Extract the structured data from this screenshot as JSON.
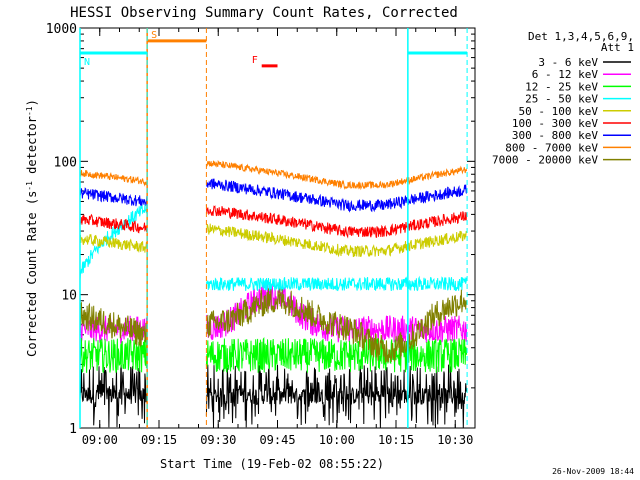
{
  "chart_data": {
    "type": "line",
    "title": "HESSI Observing Summary Count Rates, Corrected",
    "xlabel": "Start Time (19-Feb-02 08:55:22)",
    "ylabel_main": "Corrected Count Rate (s",
    "ylabel_sup1": "-1",
    "ylabel_mid": " detector",
    "ylabel_sup2": "-1",
    "ylabel_end": ")",
    "xlim_minutes_after_0855": [
      0,
      100
    ],
    "ylog": true,
    "ylim": [
      1,
      1000
    ],
    "y_ticks": [
      "1",
      "10",
      "100",
      "1000"
    ],
    "x_ticks": [
      {
        "label": "09:00",
        "min": 5
      },
      {
        "label": "09:15",
        "min": 20
      },
      {
        "label": "09:30",
        "min": 35
      },
      {
        "label": "09:45",
        "min": 50
      },
      {
        "label": "10:00",
        "min": 65
      },
      {
        "label": "10:15",
        "min": 80
      },
      {
        "label": "10:30",
        "min": 95
      }
    ],
    "legend_header": [
      "Det 1,3,4,5,6,9,",
      "Att 1"
    ],
    "legend_placement": "right",
    "timestamp": "26-Nov-2009 18:44",
    "data_gap_minutes": [
      17,
      32
    ],
    "series": [
      {
        "name": "3 - 6 keV",
        "color": "#000000",
        "base": 1.7,
        "noise": 0.9,
        "shape": "flat"
      },
      {
        "name": "6 - 12 keV",
        "color": "#ff00ff",
        "base": 5.5,
        "noise": 0.12,
        "shape": "bump"
      },
      {
        "name": "12 - 25 keV",
        "color": "#00ff00",
        "base": 3.5,
        "noise": 0.15,
        "shape": "flat"
      },
      {
        "name": "25 - 50 keV",
        "color": "#00ffff",
        "base": 12,
        "noise": 0.06,
        "shape": "rise"
      },
      {
        "name": "50 - 100 keV",
        "color": "#cccc00",
        "base": 25,
        "noise": 0.05,
        "shape": "orbit"
      },
      {
        "name": "100 - 300 keV",
        "color": "#ff0000",
        "base": 35,
        "noise": 0.05,
        "shape": "orbit"
      },
      {
        "name": "300 - 800 keV",
        "color": "#0000ff",
        "base": 55,
        "noise": 0.05,
        "shape": "orbit"
      },
      {
        "name": "800 - 7000 keV",
        "color": "#ff8000",
        "base": 78,
        "noise": 0.03,
        "shape": "orbit"
      },
      {
        "name": "7000 - 20000 keV",
        "color": "#808000",
        "base": 7,
        "noise": 0.12,
        "shape": "wave"
      }
    ],
    "flags": [
      {
        "label": "S",
        "color": "#ff8000",
        "start_min": 17,
        "end_min": 32,
        "level": 800
      },
      {
        "label": "N",
        "color": "#00ffff",
        "start_min": 0,
        "end_min": 17,
        "level": 650
      },
      {
        "label": "",
        "color": "#00ffff",
        "start_min": 83,
        "end_min": 98,
        "level": 650
      },
      {
        "label": "F",
        "color": "#ff0000",
        "start_min": 46,
        "end_min": 50,
        "level": 520
      }
    ]
  }
}
